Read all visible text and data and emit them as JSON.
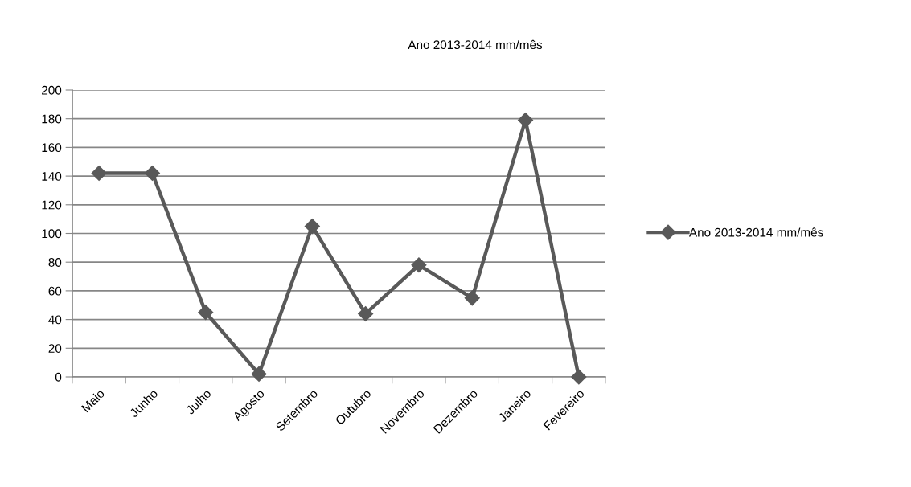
{
  "chart_data": {
    "type": "line",
    "title": "Ano 2013-2014 mm/mês",
    "categories": [
      "Maio",
      "Junho",
      "Julho",
      "Agosto",
      "Setembro",
      "Outubro",
      "Novembro",
      "Dezembro",
      "Janeiro",
      "Fevereiro"
    ],
    "series": [
      {
        "name": "Ano 2013-2014 mm/mês",
        "color": "#595959",
        "values": [
          142,
          142,
          45,
          2,
          105,
          44,
          78,
          55,
          179,
          0
        ]
      }
    ],
    "ylim": [
      0,
      200
    ],
    "yticks": [
      0,
      20,
      40,
      60,
      80,
      100,
      120,
      140,
      160,
      180,
      200
    ],
    "grid": "y",
    "legend": "right",
    "marker": "diamond",
    "line_style": "solid"
  }
}
